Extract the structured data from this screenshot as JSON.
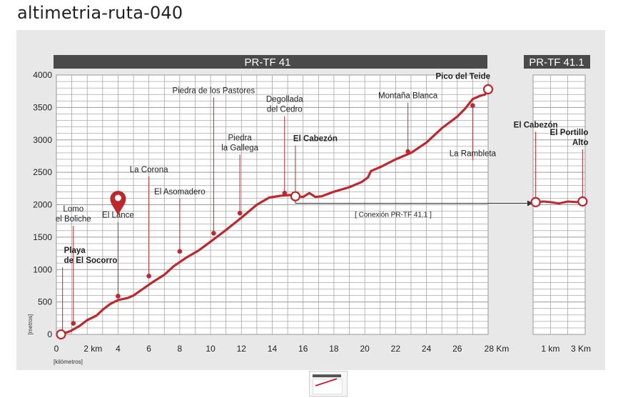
{
  "page": {
    "title": "altimetria-ruta-040"
  },
  "chart_data": {
    "type": "area",
    "colors": {
      "line": "#c0272d",
      "header": "#4a4a4a",
      "grid": "#9a9a9a",
      "panel": "#e8e8e8",
      "fill": "#ffffff"
    },
    "main": {
      "title": "PR-TF 41",
      "ylabel": "[metros]",
      "xlabel": "[kilómetros]",
      "x_unit": "Km",
      "xlim": [
        0,
        28
      ],
      "ylim": [
        0,
        4000
      ],
      "y_ticks": [
        "0",
        "500",
        "1000",
        "1500",
        "2000",
        "2500",
        "3000",
        "3500",
        "4000"
      ],
      "x_ticks": [
        {
          "x": 0,
          "label": "0"
        },
        {
          "x": 2,
          "label": "2 km"
        },
        {
          "x": 4,
          "label": "4"
        },
        {
          "x": 6,
          "label": "6"
        },
        {
          "x": 8,
          "label": "8"
        },
        {
          "x": 10,
          "label": "10"
        },
        {
          "x": 12,
          "label": "12"
        },
        {
          "x": 14,
          "label": "14"
        },
        {
          "x": 16,
          "label": "16"
        },
        {
          "x": 18,
          "label": "18"
        },
        {
          "x": 20,
          "label": "20"
        },
        {
          "x": 22,
          "label": "22"
        },
        {
          "x": 24,
          "label": "24"
        },
        {
          "x": 26,
          "label": "26"
        },
        {
          "x": 28,
          "label": "28 Km"
        }
      ],
      "profile": [
        {
          "x": 0.3,
          "y": 0
        },
        {
          "x": 0.9,
          "y": 50
        },
        {
          "x": 1.5,
          "y": 130
        },
        {
          "x": 2.0,
          "y": 220
        },
        {
          "x": 2.6,
          "y": 290
        },
        {
          "x": 3.0,
          "y": 380
        },
        {
          "x": 3.5,
          "y": 470
        },
        {
          "x": 4.0,
          "y": 530
        },
        {
          "x": 4.6,
          "y": 560
        },
        {
          "x": 5.0,
          "y": 600
        },
        {
          "x": 5.6,
          "y": 700
        },
        {
          "x": 6.2,
          "y": 800
        },
        {
          "x": 7.0,
          "y": 920
        },
        {
          "x": 7.6,
          "y": 1050
        },
        {
          "x": 8.4,
          "y": 1180
        },
        {
          "x": 9.2,
          "y": 1290
        },
        {
          "x": 10.0,
          "y": 1430
        },
        {
          "x": 11.0,
          "y": 1610
        },
        {
          "x": 12.0,
          "y": 1800
        },
        {
          "x": 13.0,
          "y": 2000
        },
        {
          "x": 13.8,
          "y": 2110
        },
        {
          "x": 14.6,
          "y": 2140
        },
        {
          "x": 15.2,
          "y": 2150
        },
        {
          "x": 15.6,
          "y": 2130
        },
        {
          "x": 16.0,
          "y": 2120
        },
        {
          "x": 16.4,
          "y": 2180
        },
        {
          "x": 16.8,
          "y": 2120
        },
        {
          "x": 17.2,
          "y": 2130
        },
        {
          "x": 18.0,
          "y": 2200
        },
        {
          "x": 19.0,
          "y": 2270
        },
        {
          "x": 19.8,
          "y": 2350
        },
        {
          "x": 20.2,
          "y": 2420
        },
        {
          "x": 20.4,
          "y": 2520
        },
        {
          "x": 21.0,
          "y": 2580
        },
        {
          "x": 22.0,
          "y": 2700
        },
        {
          "x": 23.0,
          "y": 2800
        },
        {
          "x": 24.0,
          "y": 2960
        },
        {
          "x": 25.0,
          "y": 3180
        },
        {
          "x": 26.0,
          "y": 3360
        },
        {
          "x": 26.5,
          "y": 3480
        },
        {
          "x": 27.0,
          "y": 3630
        },
        {
          "x": 27.5,
          "y": 3680
        },
        {
          "x": 27.8,
          "y": 3700
        },
        {
          "x": 28.0,
          "y": 3780
        }
      ],
      "endpoints": [
        {
          "x": 0.3,
          "y": 0
        },
        {
          "x": 15.5,
          "y": 2130
        },
        {
          "x": 28.0,
          "y": 3780
        }
      ],
      "waypoints": [
        {
          "name": "Playa\nde El Socorro",
          "bold": true,
          "x": 0.4,
          "y": 20,
          "label_y": 1100,
          "align": "start",
          "label_dx": 2
        },
        {
          "name": "Lomo\nel Boliche",
          "bold": false,
          "x": 1.1,
          "y": 170,
          "label_y": 1740,
          "align": "middle",
          "label_dx": 0
        },
        {
          "name": "El Lance",
          "bold": false,
          "x": 4.0,
          "y": 590,
          "label_y": 1800,
          "align": "middle",
          "label_dx": 0
        },
        {
          "name": "La Corona",
          "bold": false,
          "x": 6.0,
          "y": 900,
          "label_y": 2500,
          "align": "middle",
          "label_dx": 0
        },
        {
          "name": "El Asomadero",
          "bold": false,
          "x": 8.0,
          "y": 1280,
          "label_y": 2160,
          "align": "middle",
          "label_dx": 0
        },
        {
          "name": "Piedra de los Pastores",
          "bold": false,
          "x": 10.2,
          "y": 1560,
          "label_y": 3720,
          "align": "middle",
          "label_dx": 0
        },
        {
          "name": "Piedra\nla Gallega",
          "bold": false,
          "x": 11.9,
          "y": 1870,
          "label_y": 2840,
          "align": "middle",
          "label_dx": 0
        },
        {
          "name": "Degollada\ndel Cedro",
          "bold": false,
          "x": 14.8,
          "y": 2180,
          "label_y": 3430,
          "align": "middle",
          "label_dx": 0
        },
        {
          "name": "El Cabezón",
          "bold": true,
          "x": 15.5,
          "y": 2130,
          "label_y": 2980,
          "align": "start",
          "label_dx": -3
        },
        {
          "name": "Montaña Blanca",
          "bold": false,
          "x": 22.8,
          "y": 2820,
          "label_y": 3640,
          "align": "middle",
          "label_dx": 0
        },
        {
          "name": "La Rambleta",
          "bold": false,
          "x": 27.0,
          "y": 3530,
          "label_y": 2750,
          "align": "middle",
          "label_dx": 0
        },
        {
          "name": "Pico del Teide",
          "bold": true,
          "x": 28.0,
          "y": 3780,
          "label_y": 3940,
          "align": "end",
          "label_dx": 3
        }
      ],
      "pin_marker": {
        "x": 4.0,
        "label": "El Lance"
      },
      "connection": {
        "label": "[ Conexión PR-TF 41.1 ]",
        "from_x": 15.5,
        "y": 2000
      }
    },
    "secondary": {
      "title": "PR-TF 41.1",
      "xlim": [
        0,
        3
      ],
      "ylim": [
        0,
        4000
      ],
      "x_ticks": [
        {
          "x": 1,
          "label": "1 km"
        },
        {
          "x": 3,
          "label": "3 Km"
        }
      ],
      "profile": [
        {
          "x": 0.15,
          "y": 2040
        },
        {
          "x": 0.6,
          "y": 2050
        },
        {
          "x": 1.0,
          "y": 2040
        },
        {
          "x": 1.5,
          "y": 2020
        },
        {
          "x": 2.0,
          "y": 2050
        },
        {
          "x": 2.5,
          "y": 2040
        },
        {
          "x": 2.85,
          "y": 2050
        }
      ],
      "endpoints": [
        {
          "x": 0.15,
          "y": 2040
        },
        {
          "x": 2.85,
          "y": 2050
        }
      ],
      "waypoints": [
        {
          "name": "El Cabezón",
          "bold": true,
          "x": 0.15,
          "y": 2040,
          "label_y": 3190,
          "align": "middle"
        },
        {
          "name": "El Portillo\nAlto",
          "bold": true,
          "x": 2.85,
          "y": 2050,
          "label_y": 2920,
          "align": "end"
        }
      ]
    }
  }
}
